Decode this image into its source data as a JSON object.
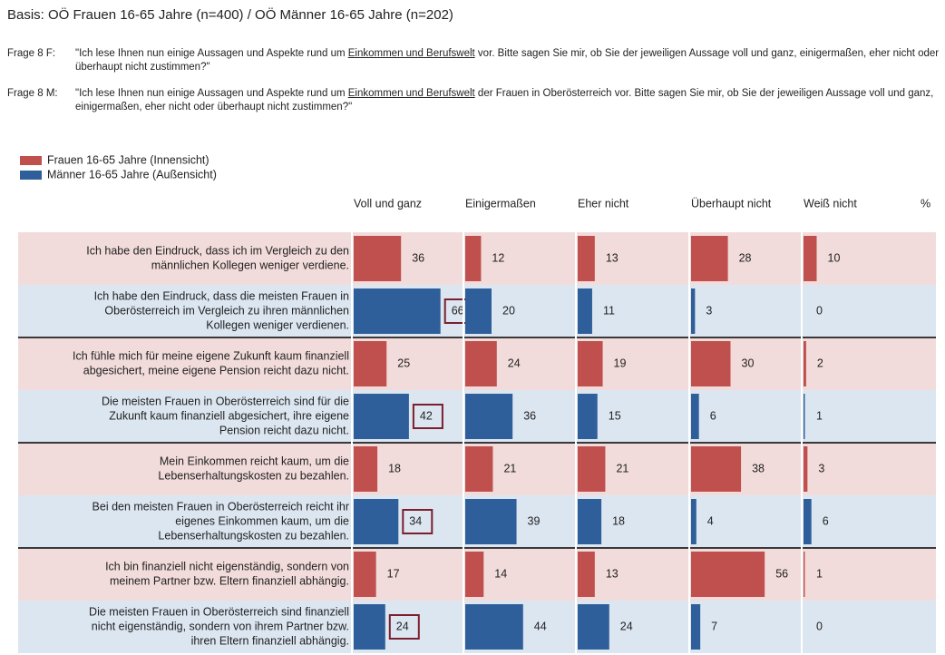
{
  "basis": "Basis: OÖ Frauen 16-65 Jahre (n=400) / OÖ Männer 16-65 Jahre (n=202)",
  "questions": [
    {
      "label": "Frage 8 F:",
      "before": "\"Ich lese Ihnen nun einige Aussagen und Aspekte rund um ",
      "underlined": "Einkommen  und Berufswelt",
      "after": " vor. Bitte sagen Sie mir, ob Sie der jeweiligen Aussage voll und ganz, einigermaßen, eher nicht oder überhaupt nicht zustimmen?\""
    },
    {
      "label": "Frage 8 M:",
      "before": "\"Ich lese Ihnen nun einige Aussagen und Aspekte rund um ",
      "underlined": "Einkommen  und Berufswelt",
      "after": " der Frauen in Oberösterreich vor. Bitte sagen Sie mir, ob Sie der jeweiligen Aussage voll und ganz, einigermaßen, eher nicht oder überhaupt nicht zustimmen?\""
    }
  ],
  "chart_data": {
    "type": "bar",
    "columns": [
      "Voll und ganz",
      "Einigermaßen",
      "Eher nicht",
      "Überhaupt nicht",
      "Weiß nicht"
    ],
    "unit": "%",
    "series": [
      {
        "name": "Frauen 16-65 Jahre (Innensicht)",
        "color": "#c0504d",
        "background": "#f2dcdb",
        "statements": [
          [
            "Ich habe den Eindruck, dass ich im Vergleich zu den",
            "männlichen Kollegen weniger verdiene."
          ],
          [
            "Ich fühle mich für meine eigene Zukunft kaum finanziell",
            "abgesichert, meine eigene Pension reicht dazu nicht."
          ],
          [
            "Mein Einkommen reicht kaum, um die",
            "Lebenserhaltungskosten zu bezahlen."
          ],
          [
            "Ich bin finanziell nicht eigenständig, sondern von",
            "meinem Partner bzw. Eltern finanziell abhängig."
          ]
        ],
        "values": [
          [
            36,
            12,
            13,
            28,
            10
          ],
          [
            25,
            24,
            19,
            30,
            2
          ],
          [
            18,
            21,
            21,
            38,
            3
          ],
          [
            17,
            14,
            13,
            56,
            1
          ]
        ]
      },
      {
        "name": "Männer 16-65 Jahre (Außensicht)",
        "color": "#2f5f9a",
        "background": "#dce6f1",
        "boxed_column": 0,
        "statements": [
          [
            "Ich habe den Eindruck, dass die meisten Frauen in",
            "Oberösterreich im Vergleich zu ihren männlichen",
            "Kollegen weniger verdienen."
          ],
          [
            "Die meisten Frauen in Oberösterreich sind für die",
            "Zukunft kaum finanziell abgesichert, ihre eigene",
            "Pension reicht dazu nicht."
          ],
          [
            "Bei den meisten Frauen in Oberösterreich reicht ihr",
            "eigenes Einkommen kaum, um die",
            "Lebenserhaltungskosten zu bezahlen."
          ],
          [
            "Die meisten Frauen in Oberösterreich sind finanziell",
            "nicht eigenständig, sondern von ihrem Partner bzw.",
            "ihren Eltern finanziell abhängig."
          ]
        ],
        "values": [
          [
            66,
            20,
            11,
            3,
            0
          ],
          [
            42,
            36,
            15,
            6,
            1
          ],
          [
            34,
            39,
            18,
            4,
            6
          ],
          [
            24,
            44,
            24,
            7,
            0
          ]
        ]
      }
    ]
  }
}
